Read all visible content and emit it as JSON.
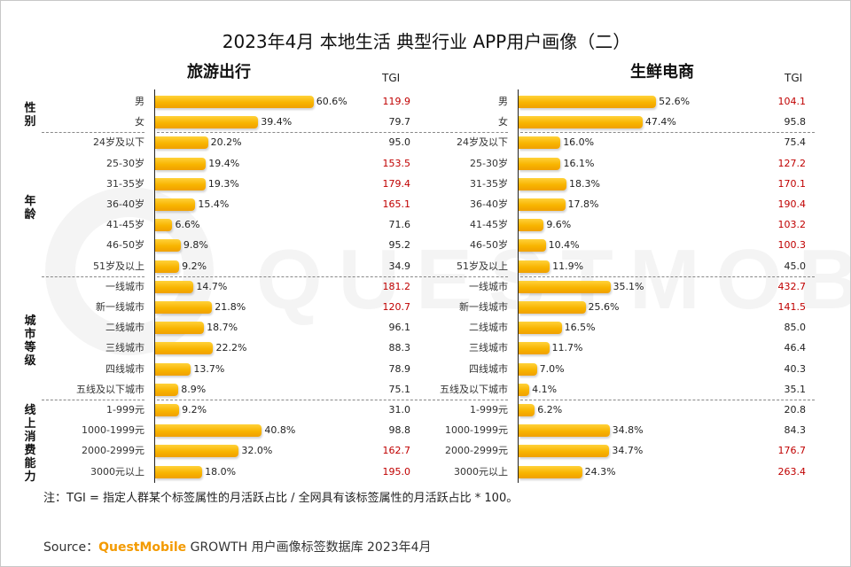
{
  "title": "2023年4月 本地生活 典型行业 APP用户画像（二）",
  "tgi_header": "TGI",
  "tgi_highlight_color": "#c00000",
  "tgi_normal_color": "#222222",
  "bar_color": "#f8b400",
  "watermark": "QUESTMOBILE",
  "groups": [
    {
      "label": "性别",
      "rows": [
        0,
        1
      ]
    },
    {
      "label": "年龄",
      "rows": [
        2,
        3,
        4,
        5,
        6,
        7,
        8
      ]
    },
    {
      "label": "城市等级",
      "rows": [
        9,
        10,
        11,
        12,
        13,
        14
      ]
    },
    {
      "label": "线上消费能力",
      "rows": [
        15,
        16,
        17,
        18
      ]
    }
  ],
  "categories": [
    "男",
    "女",
    "24岁及以下",
    "25-30岁",
    "31-35岁",
    "36-40岁",
    "41-45岁",
    "46-50岁",
    "51岁及以上",
    "一线城市",
    "新一线城市",
    "二线城市",
    "三线城市",
    "四线城市",
    "五线及以下城市",
    "1-999元",
    "1000-1999元",
    "2000-2999元",
    "3000元以上"
  ],
  "chart_data": [
    {
      "type": "bar",
      "title": "旅游出行",
      "categories": [
        "男",
        "女",
        "24岁及以下",
        "25-30岁",
        "31-35岁",
        "36-40岁",
        "41-45岁",
        "46-50岁",
        "51岁及以上",
        "一线城市",
        "新一线城市",
        "二线城市",
        "三线城市",
        "四线城市",
        "五线及以下城市",
        "1-999元",
        "1000-1999元",
        "2000-2999元",
        "3000元以上"
      ],
      "values": [
        60.6,
        39.4,
        20.2,
        19.4,
        19.3,
        15.4,
        6.6,
        9.8,
        9.2,
        14.7,
        21.8,
        18.7,
        22.2,
        13.7,
        8.9,
        9.2,
        40.8,
        32.0,
        18.0
      ],
      "value_labels": [
        "60.6%",
        "39.4%",
        "20.2%",
        "19.4%",
        "19.3%",
        "15.4%",
        "6.6%",
        "9.8%",
        "9.2%",
        "14.7%",
        "21.8%",
        "18.7%",
        "22.2%",
        "13.7%",
        "8.9%",
        "9.2%",
        "40.8%",
        "32.0%",
        "18.0%"
      ],
      "tgi": [
        "119.9",
        "79.7",
        "95.0",
        "153.5",
        "179.4",
        "165.1",
        "71.6",
        "95.2",
        "34.9",
        "181.2",
        "120.7",
        "96.1",
        "88.3",
        "78.9",
        "75.1",
        "31.0",
        "98.8",
        "162.7",
        "195.0"
      ],
      "xlim": [
        0,
        100
      ]
    },
    {
      "type": "bar",
      "title": "生鲜电商",
      "categories": [
        "男",
        "女",
        "24岁及以下",
        "25-30岁",
        "31-35岁",
        "36-40岁",
        "41-45岁",
        "46-50岁",
        "51岁及以上",
        "一线城市",
        "新一线城市",
        "二线城市",
        "三线城市",
        "四线城市",
        "五线及以下城市",
        "1-999元",
        "1000-1999元",
        "2000-2999元",
        "3000元以上"
      ],
      "values": [
        52.6,
        47.4,
        16.0,
        16.1,
        18.3,
        17.8,
        9.6,
        10.4,
        11.9,
        35.1,
        25.6,
        16.5,
        11.7,
        7.0,
        4.1,
        6.2,
        34.8,
        34.7,
        24.3
      ],
      "value_labels": [
        "52.6%",
        "47.4%",
        "16.0%",
        "16.1%",
        "18.3%",
        "17.8%",
        "9.6%",
        "10.4%",
        "11.9%",
        "35.1%",
        "25.6%",
        "16.5%",
        "11.7%",
        "7.0%",
        "4.1%",
        "6.2%",
        "34.8%",
        "34.7%",
        "24.3%"
      ],
      "tgi": [
        "104.1",
        "95.8",
        "75.4",
        "127.2",
        "170.1",
        "190.4",
        "103.2",
        "100.3",
        "45.0",
        "432.7",
        "141.5",
        "85.0",
        "46.4",
        "40.3",
        "35.1",
        "20.8",
        "84.3",
        "176.7",
        "263.4"
      ],
      "xlim": [
        0,
        100
      ]
    }
  ],
  "note": "注：TGI = 指定人群某个标签属性的月活跃占比 / 全网具有该标签属性的月活跃占比 * 100。",
  "source_prefix": "Source：",
  "source_brand": "QuestMobile",
  "source_suffix": " GROWTH 用户画像标签数据库 2023年4月"
}
